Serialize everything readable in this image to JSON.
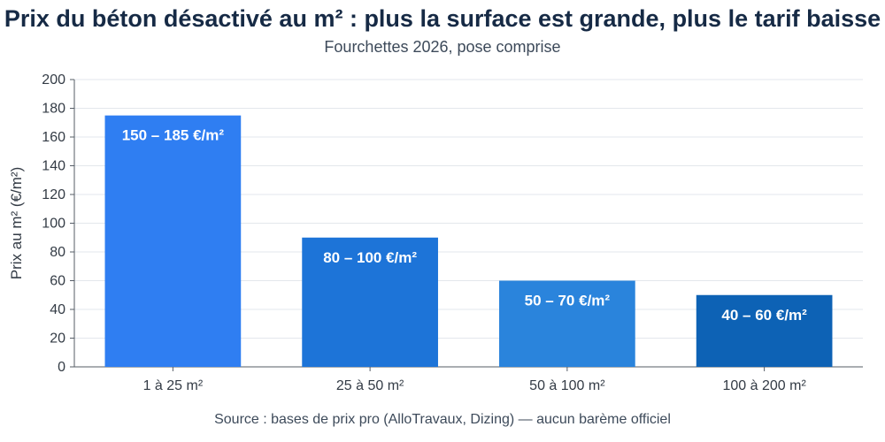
{
  "chart_data": {
    "type": "bar",
    "title": "Prix du béton désactivé au m² : plus la surface est grande, plus le tarif baisse",
    "subtitle": "Fourchettes 2026, pose comprise",
    "ylabel": "Prix au m² (€/m²)",
    "xlabel": "",
    "source": "Source : bases de prix pro (AlloTravaux, Dizing) — aucun barème officiel",
    "categories": [
      "1 à 25 m²",
      "25 à 50 m²",
      "50 à 100 m²",
      "100 à 200 m²"
    ],
    "values": [
      175,
      90,
      60,
      50
    ],
    "range_low": [
      150,
      80,
      50,
      40
    ],
    "range_high": [
      185,
      100,
      70,
      60
    ],
    "bar_labels": [
      "150 – 185 €/m²",
      "80 – 100 €/m²",
      "50 – 70 €/m²",
      "40 – 60 €/m²"
    ],
    "colors": [
      "#2f7ef2",
      "#1d74d8",
      "#2a84dc",
      "#0d62b5"
    ],
    "ylim": [
      0,
      200
    ],
    "yticks": [
      0,
      20,
      40,
      60,
      80,
      100,
      120,
      140,
      160,
      180,
      200
    ],
    "grid": true,
    "legend": "none"
  }
}
